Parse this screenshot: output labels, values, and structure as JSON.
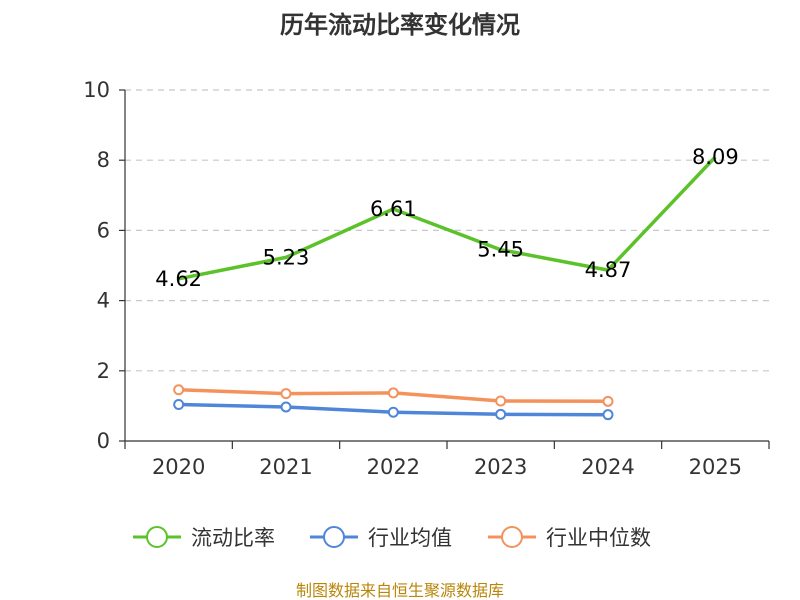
{
  "title": "历年流动比率变化情况",
  "footer": "制图数据来自恒生聚源数据库",
  "chart_data": {
    "type": "line",
    "title": "历年流动比率变化情况",
    "categories": [
      "2020",
      "2021",
      "2022",
      "2023",
      "2024",
      "2025"
    ],
    "y_ticks": [
      "0",
      "2",
      "4",
      "6",
      "8",
      "10"
    ],
    "ylim": [
      0,
      10
    ],
    "grid": true,
    "legend_position": "bottom",
    "series": [
      {
        "name": "流动比率",
        "color": "#5cc22a",
        "values": [
          4.62,
          5.23,
          6.61,
          5.45,
          4.87,
          8.09
        ],
        "labels": [
          "4.62",
          "5.23",
          "6.61",
          "5.45",
          "4.87",
          "8.09"
        ],
        "markers": false
      },
      {
        "name": "行业均值",
        "color": "#4f86d9",
        "values": [
          1.04,
          0.97,
          0.82,
          0.76,
          0.75,
          null
        ],
        "labels": [],
        "markers": true
      },
      {
        "name": "行业中位数",
        "color": "#f4925c",
        "values": [
          1.46,
          1.35,
          1.37,
          1.14,
          1.13,
          null
        ],
        "labels": [],
        "markers": true
      }
    ]
  }
}
